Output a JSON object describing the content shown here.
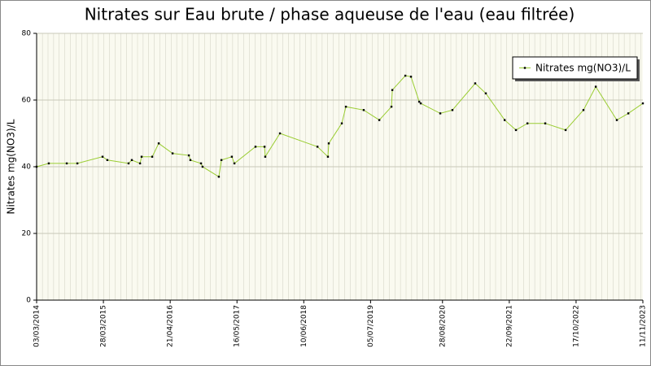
{
  "chart_data": {
    "type": "line",
    "title": "Nitrates sur Eau brute / phase aqueuse de l'eau (eau filtrée)",
    "y_label": "Nitrates mg(NO3)/L",
    "xlim": [
      "03/03/2014",
      "11/11/2023"
    ],
    "xticks": [
      "03/03/2014",
      "28/03/2015",
      "21/04/2016",
      "16/05/2017",
      "10/06/2018",
      "05/07/2019",
      "28/08/2020",
      "22/09/2021",
      "17/10/2022",
      "11/11/2023"
    ],
    "ylim": [
      0,
      80
    ],
    "yticks": [
      0,
      20,
      40,
      60,
      80
    ],
    "grid": true,
    "legend": "upper right",
    "x": [
      "03/03/2014",
      "13/05/2014",
      "26/08/2014",
      "27/10/2014",
      "23/03/2015",
      "20/04/2015",
      "22/08/2015",
      "10/09/2015",
      "28/10/2015",
      "06/11/2015",
      "07/01/2016",
      "14/02/2016",
      "05/05/2016",
      "08/08/2016",
      "17/08/2016",
      "18/10/2016",
      "27/10/2016",
      "30/01/2017",
      "14/02/2017",
      "16/04/2017",
      "01/05/2017",
      "01/09/2017",
      "24/10/2017",
      "28/10/2017",
      "22/01/2018",
      "29/08/2018",
      "29/10/2018",
      "03/11/2018",
      "18/01/2019",
      "11/02/2019",
      "26/05/2019",
      "25/08/2019",
      "04/11/2019",
      "09/11/2019",
      "24/01/2020",
      "26/02/2020",
      "14/04/2020",
      "23/04/2020",
      "15/08/2020",
      "25/10/2020",
      "07/03/2021",
      "08/05/2021",
      "26/08/2021",
      "31/10/2021",
      "06/01/2022",
      "20/04/2022",
      "17/08/2022",
      "29/11/2022",
      "09/02/2023",
      "12/06/2023",
      "18/08/2023",
      "11/11/2023"
    ],
    "series": [
      {
        "name": "Nitrates mg(NO3)/L",
        "color": "#9acd32",
        "values": [
          40,
          41,
          41,
          41,
          43,
          42,
          41,
          42,
          41,
          43,
          43,
          47,
          44,
          43.4,
          42,
          41,
          40,
          37,
          42,
          43,
          41,
          46,
          46,
          43,
          50,
          46,
          43,
          47,
          53,
          58,
          57,
          54,
          58,
          63,
          67.3,
          67,
          59.5,
          59,
          56,
          57,
          65,
          62,
          54,
          51,
          53,
          53,
          51,
          57,
          64,
          54,
          56,
          59
        ]
      }
    ]
  }
}
